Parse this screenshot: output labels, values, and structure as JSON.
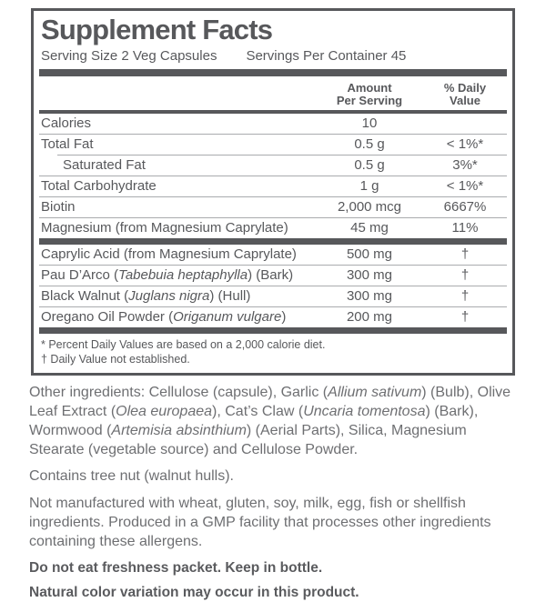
{
  "panel": {
    "title": "Supplement Facts",
    "serving_size": "Serving Size 2 Veg Capsules",
    "servings_per_container": "Servings Per Container 45",
    "columns": {
      "amount": [
        "Amount",
        "Per Serving"
      ],
      "daily": [
        "% Daily",
        "Value"
      ]
    },
    "rows": [
      {
        "name": [
          {
            "t": "Calories"
          }
        ],
        "amount": "10",
        "dv": ""
      },
      {
        "name": [
          {
            "t": "Total Fat"
          }
        ],
        "amount": "0.5 g",
        "dv": "< 1%*"
      },
      {
        "name": [
          {
            "t": "Saturated Fat"
          }
        ],
        "amount": "0.5 g",
        "dv": "3%*"
      },
      {
        "name": [
          {
            "t": "Total Carbohydrate"
          }
        ],
        "amount": "1 g",
        "dv": "< 1%*"
      },
      {
        "name": [
          {
            "t": "Biotin"
          }
        ],
        "amount": "2,000 mcg",
        "dv": "6667%"
      },
      {
        "name": [
          {
            "t": "Magnesium (from Magnesium Caprylate)"
          }
        ],
        "amount": "45 mg",
        "dv": "11%"
      },
      {
        "name": [
          {
            "t": "Caprylic Acid (from Magnesium Caprylate)"
          }
        ],
        "amount": "500 mg",
        "dv": "†"
      },
      {
        "name": [
          {
            "t": "Pau D’Arco ("
          },
          {
            "t": "Tabebuia heptaphylla",
            "i": true
          },
          {
            "t": ") (Bark)"
          }
        ],
        "amount": "300 mg",
        "dv": "†"
      },
      {
        "name": [
          {
            "t": "Black Walnut ("
          },
          {
            "t": "Juglans nigra",
            "i": true
          },
          {
            "t": ") (Hull)"
          }
        ],
        "amount": "300 mg",
        "dv": "†"
      },
      {
        "name": [
          {
            "t": "Oregano Oil Powder ("
          },
          {
            "t": "Origanum vulgare",
            "i": true
          },
          {
            "t": ")"
          }
        ],
        "amount": "200 mg",
        "dv": "†"
      }
    ],
    "footnotes": [
      "* Percent Daily Values are based on a 2,000 calorie diet.",
      "† Daily Value not established."
    ]
  },
  "body": {
    "other_ingredients": [
      {
        "t": "Other ingredients: Cellulose (capsule), Garlic ("
      },
      {
        "t": "Allium sativum",
        "i": true
      },
      {
        "t": ") (Bulb), Olive Leaf Extract ("
      },
      {
        "t": "Olea europaea",
        "i": true
      },
      {
        "t": "), Cat’s Claw ("
      },
      {
        "t": "Uncaria tomentosa",
        "i": true
      },
      {
        "t": ") (Bark), Wormwood ("
      },
      {
        "t": "Artemisia absinthium",
        "i": true
      },
      {
        "t": ") (Aerial Parts), Silica, Magnesium Stearate (vegetable source) and Cellulose Powder."
      }
    ],
    "contains": "Contains tree nut (walnut hulls).",
    "allergen": "Not manufactured with wheat, gluten, soy, milk, egg, fish or shellfish ingredients. Produced in a GMP facility that processes other ingredients containing these allergens.",
    "freshness": "Do not eat freshness packet. Keep in bottle.",
    "color_variation": "Natural color variation may occur in this product."
  },
  "colors": {
    "label_dark": "#57585b",
    "rule_gray": "#a9abae",
    "body_gray": "#6e6f72"
  }
}
